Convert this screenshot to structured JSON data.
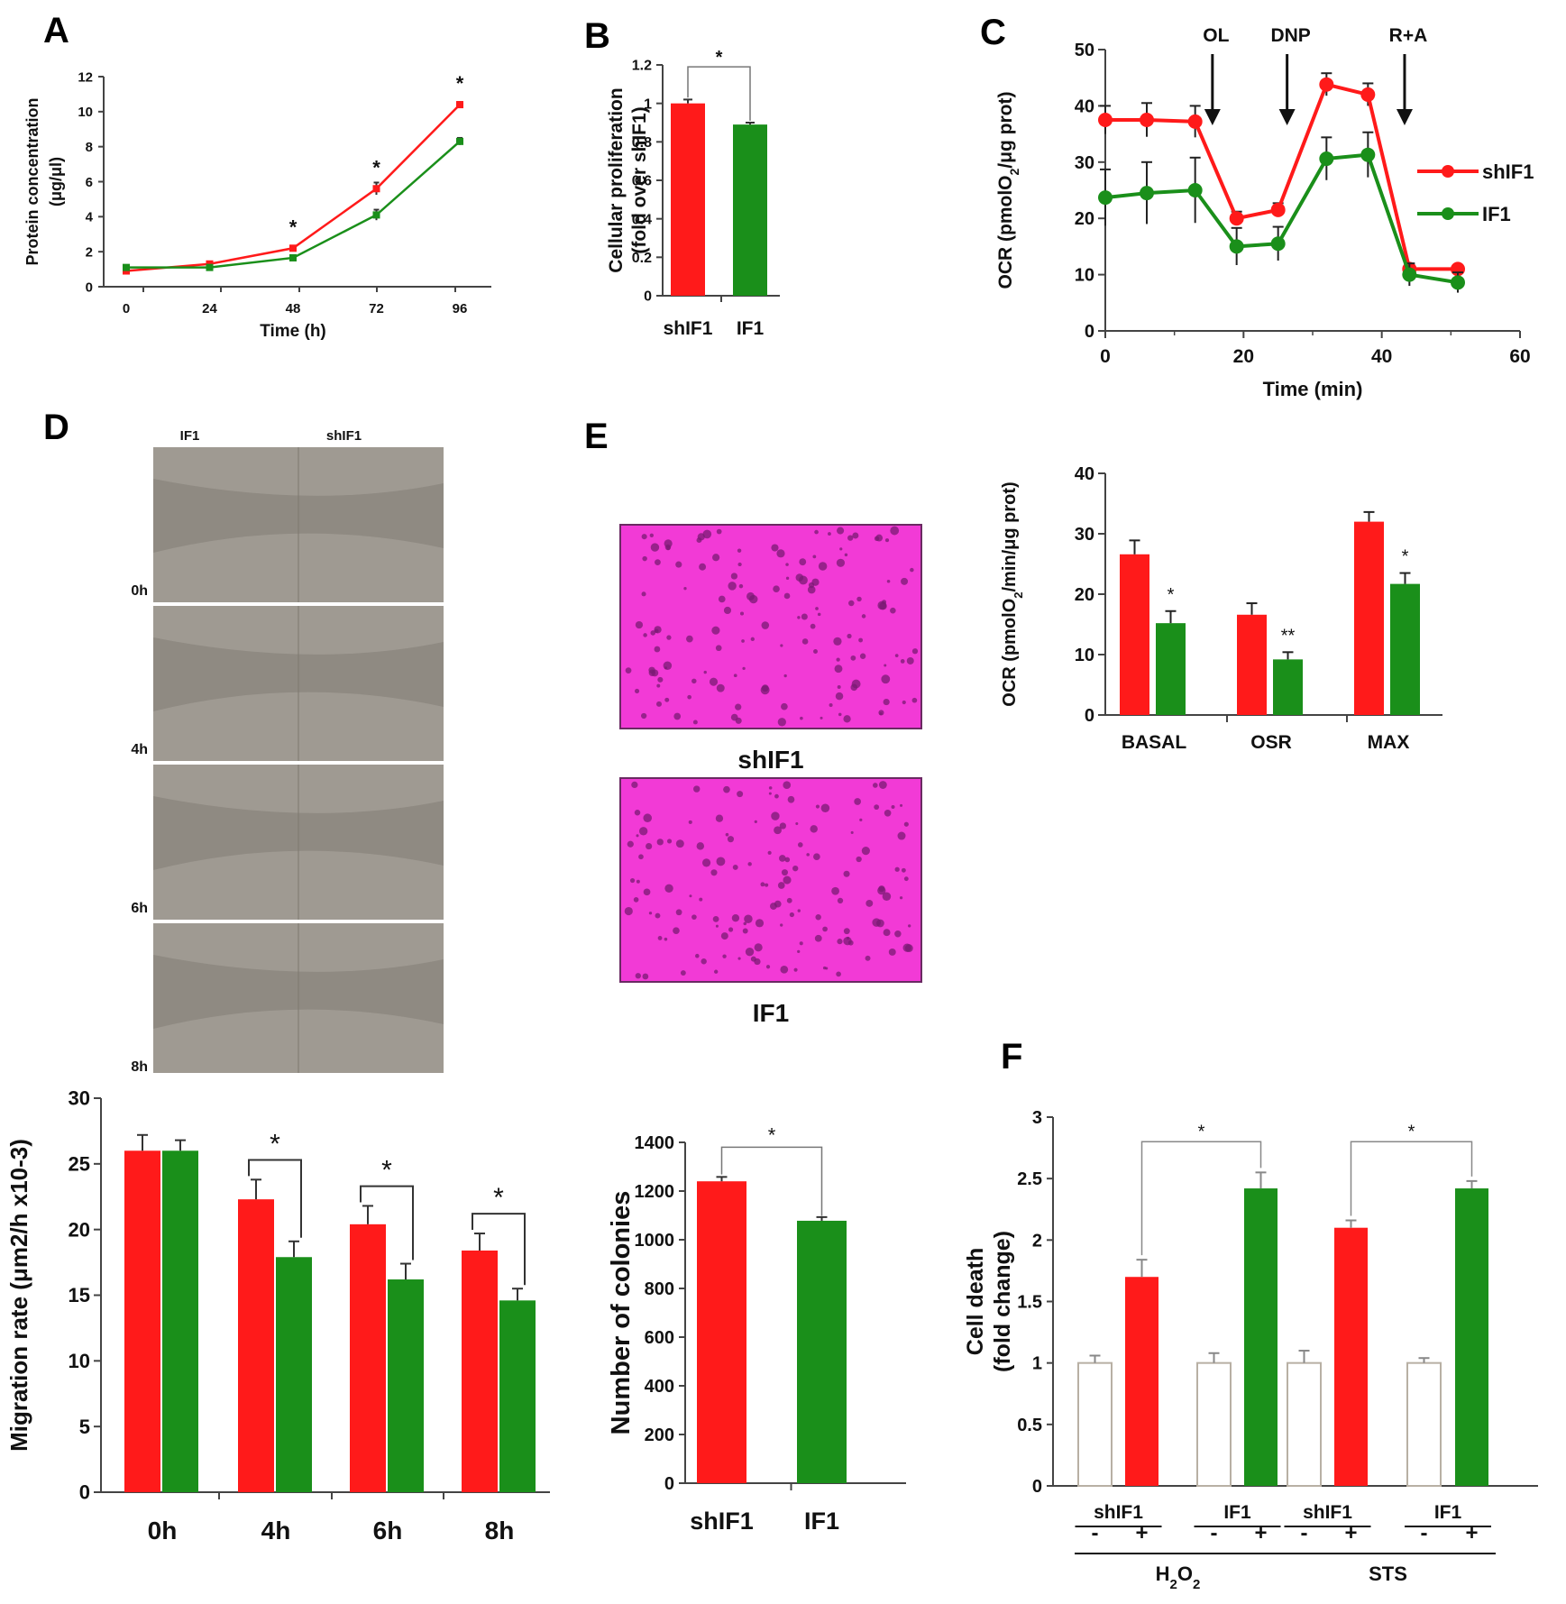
{
  "colors": {
    "red": "#ff1a1a",
    "green": "#1a8f1a",
    "white_bar": "#ffffff",
    "axis": "#444444"
  },
  "panels": {
    "a": "A",
    "b": "B",
    "c": "C",
    "d": "D",
    "e": "E",
    "f": "F"
  },
  "chart_data": [
    {
      "id": "A",
      "type": "line",
      "ylabel": "Protein concentration (μg/μl)",
      "xlabel": "Time (h)",
      "x": [
        0,
        24,
        48,
        72,
        96
      ],
      "xlim": [
        0,
        96
      ],
      "ylim": [
        0,
        12
      ],
      "yticks": [
        "0",
        "2",
        "4",
        "6",
        "8",
        "10",
        "12"
      ],
      "xticks": [
        "0",
        "24",
        "48",
        "72",
        "96"
      ],
      "series": [
        {
          "color": "red",
          "values": [
            0.9,
            1.3,
            2.2,
            5.6,
            10.4
          ],
          "errors": [
            0.1,
            0.1,
            0.1,
            0.35,
            0.15
          ]
        },
        {
          "color": "green",
          "values": [
            1.1,
            1.1,
            1.65,
            4.1,
            8.3
          ],
          "errors": [
            0.1,
            0.1,
            0.1,
            0.3,
            0.2
          ]
        }
      ],
      "annotations": [
        {
          "x": 48,
          "text": "*"
        },
        {
          "x": 72,
          "text": "*"
        },
        {
          "x": 96,
          "text": "*"
        }
      ]
    },
    {
      "id": "B",
      "type": "bar",
      "ylabel": "Cellular proliferation (fold over shIF1)",
      "categories": [
        "shIF1",
        "IF1"
      ],
      "values": [
        1.0,
        0.89
      ],
      "errors": [
        0.02,
        0.01
      ],
      "ylim": [
        0,
        1.2
      ],
      "yticks": [
        "0",
        "0.2",
        "0.4",
        "0.6",
        "0.8",
        "1",
        "1.2"
      ],
      "colors": [
        "red",
        "green"
      ],
      "sig": "*"
    },
    {
      "id": "C-top",
      "type": "line",
      "ylabel": "OCR (pmolO2/μg prot)",
      "xlabel": "Time (min)",
      "xlim": [
        0,
        60
      ],
      "ylim": [
        0,
        50
      ],
      "xticks": [
        "0",
        "20",
        "40",
        "60"
      ],
      "yticks": [
        "0",
        "10",
        "20",
        "30",
        "40",
        "50"
      ],
      "x": [
        0,
        6,
        13,
        19,
        25,
        32,
        38,
        44,
        51
      ],
      "series": [
        {
          "name": "shIF1",
          "color": "red",
          "values": [
            37.5,
            37.5,
            37.2,
            20.0,
            21.5,
            43.8,
            42.0,
            11.0,
            11.0
          ],
          "errors": [
            2.5,
            3.0,
            2.8,
            1.2,
            1.2,
            2.0,
            2.0,
            0.5,
            0.6
          ]
        },
        {
          "name": "IF1",
          "color": "green",
          "values": [
            23.7,
            24.5,
            25.0,
            15.0,
            15.5,
            30.6,
            31.3,
            10.0,
            8.6
          ],
          "errors": [
            5.0,
            5.5,
            5.8,
            3.3,
            3.0,
            3.8,
            4.0,
            2.0,
            1.8
          ]
        }
      ],
      "arrows": [
        {
          "x": 15.5,
          "text": "OL"
        },
        {
          "x": 26.3,
          "text": "DNP"
        },
        {
          "x": 43.3,
          "text": "R+A"
        }
      ]
    },
    {
      "id": "C-bottom",
      "type": "bar",
      "ylabel": "OCR (pmolO2/min/μg prot)",
      "categories": [
        "BASAL",
        "OSR",
        "MAX"
      ],
      "ylim": [
        0,
        40
      ],
      "yticks": [
        "0",
        "10",
        "20",
        "30",
        "40"
      ],
      "series": [
        {
          "color": "red",
          "values": [
            26.6,
            16.6,
            32.0
          ],
          "errors": [
            2.3,
            1.9,
            1.6
          ]
        },
        {
          "color": "green",
          "values": [
            15.2,
            9.2,
            21.7
          ],
          "errors": [
            2.0,
            1.2,
            1.8
          ]
        }
      ],
      "sig": [
        "*",
        "**",
        "*"
      ]
    },
    {
      "id": "D",
      "type": "bar",
      "ylabel": "Migration rate (μm2/h x10-3)",
      "categories": [
        "0h",
        "4h",
        "6h",
        "8h"
      ],
      "ylim": [
        0,
        30
      ],
      "yticks": [
        "0",
        "5",
        "10",
        "15",
        "20",
        "25",
        "30"
      ],
      "series": [
        {
          "color": "red",
          "values": [
            26.0,
            22.3,
            20.4,
            18.4
          ],
          "errors": [
            1.2,
            1.5,
            1.4,
            1.3
          ]
        },
        {
          "color": "green",
          "values": [
            26.0,
            17.9,
            16.2,
            14.6
          ],
          "errors": [
            0.8,
            1.2,
            1.2,
            0.9
          ]
        }
      ],
      "sig": [
        "",
        "*",
        "*",
        "*"
      ]
    },
    {
      "id": "E",
      "type": "bar",
      "ylabel": "Number of colonies",
      "categories": [
        "shIF1",
        "IF1"
      ],
      "values": [
        1240,
        1078
      ],
      "errors": [
        18,
        15
      ],
      "ylim": [
        0,
        1400
      ],
      "yticks": [
        "0",
        "200",
        "400",
        "600",
        "800",
        "1000",
        "1200",
        "1400"
      ],
      "colors": [
        "red",
        "green"
      ],
      "sig": "*"
    },
    {
      "id": "F",
      "type": "bar",
      "ylabel": "Cell death (fold change)",
      "ylim": [
        0,
        3
      ],
      "yticks": [
        "0",
        "0.5",
        "1",
        "1.5",
        "2",
        "2.5",
        "3"
      ],
      "bars": [
        {
          "value": 1.0,
          "error": 0.06,
          "color": "white_bar"
        },
        {
          "value": 1.7,
          "error": 0.14,
          "color": "red"
        },
        {
          "value": 1.0,
          "error": 0.08,
          "color": "white_bar"
        },
        {
          "value": 2.42,
          "error": 0.13,
          "color": "green"
        },
        {
          "value": 1.0,
          "error": 0.1,
          "color": "white_bar"
        },
        {
          "value": 2.1,
          "error": 0.06,
          "color": "red"
        },
        {
          "value": 1.0,
          "error": 0.04,
          "color": "white_bar"
        },
        {
          "value": 2.42,
          "error": 0.06,
          "color": "green"
        }
      ],
      "groups": [
        "shIF1",
        "IF1",
        "shIF1",
        "IF1"
      ],
      "signs": [
        "-",
        "+",
        "-",
        "+",
        "-",
        "+",
        "-",
        "+"
      ],
      "treatments": [
        "H2O2",
        "STS"
      ],
      "sig": [
        "*",
        "*"
      ]
    }
  ],
  "micrographs": {
    "columns": [
      "IF1",
      "shIF1"
    ],
    "rows": [
      "0h",
      "4h",
      "6h",
      "8h"
    ]
  },
  "colony_images": [
    "shIF1",
    "IF1"
  ]
}
